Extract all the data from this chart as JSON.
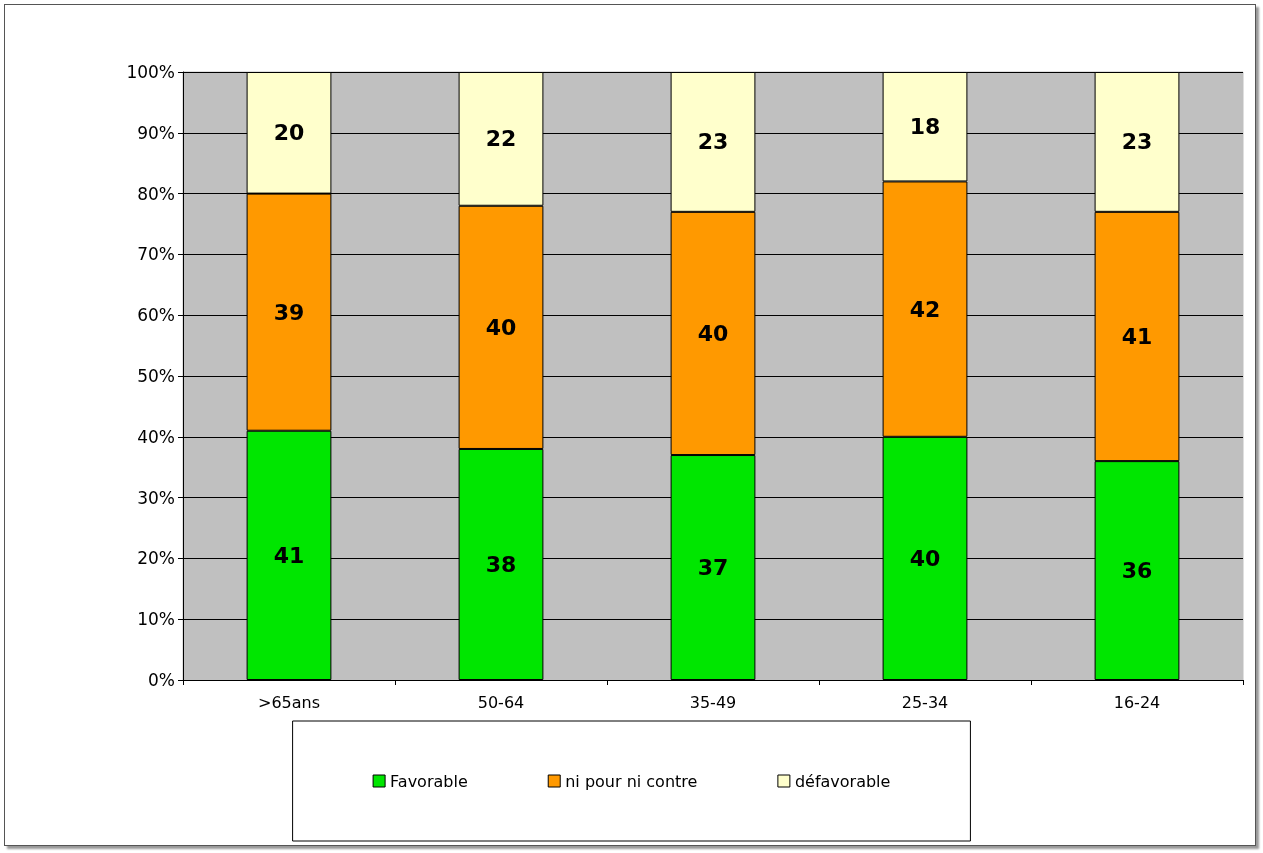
{
  "chart_data": {
    "type": "bar",
    "stacked": true,
    "data_labels": true,
    "categories": [
      ">65ans",
      "50-64",
      "35-49",
      "25-34",
      "16-24"
    ],
    "series": [
      {
        "name": "Favorable",
        "color": "#00e600",
        "values": [
          41,
          38,
          37,
          40,
          36
        ]
      },
      {
        "name": "ni pour ni contre",
        "color": "#ff9900",
        "values": [
          39,
          40,
          40,
          42,
          41
        ]
      },
      {
        "name": "défavorable",
        "color": "#ffffcc",
        "values": [
          20,
          22,
          23,
          18,
          23
        ]
      }
    ],
    "ylim": [
      0,
      100
    ],
    "yticks": [
      {
        "value": 0,
        "label": "0%"
      },
      {
        "value": 10,
        "label": "10%"
      },
      {
        "value": 20,
        "label": "20%"
      },
      {
        "value": 30,
        "label": "30%"
      },
      {
        "value": 40,
        "label": "40%"
      },
      {
        "value": 50,
        "label": "50%"
      },
      {
        "value": 60,
        "label": "60%"
      },
      {
        "value": 70,
        "label": "70%"
      },
      {
        "value": 80,
        "label": "80%"
      },
      {
        "value": 90,
        "label": "90%"
      },
      {
        "value": 100,
        "label": "100%"
      }
    ],
    "grid": "y",
    "legend": "bottom"
  }
}
